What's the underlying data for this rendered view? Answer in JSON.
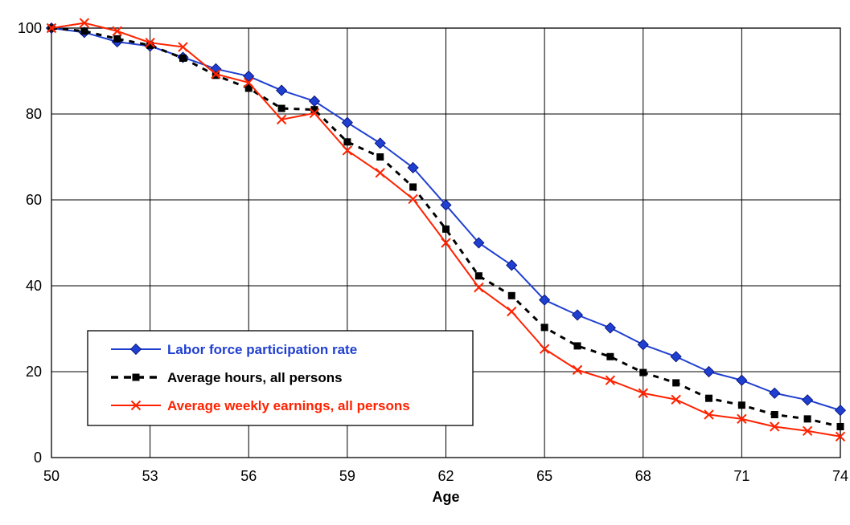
{
  "chart_data": {
    "type": "line",
    "title": "",
    "xlabel": "Age",
    "ylabel": "",
    "xlim": [
      50,
      74
    ],
    "ylim": [
      0,
      100
    ],
    "x_ticks": [
      50,
      53,
      56,
      59,
      62,
      65,
      68,
      71,
      74
    ],
    "y_ticks": [
      0,
      20,
      40,
      60,
      80,
      100
    ],
    "grid": true,
    "legend_position": "lower-left",
    "x": [
      50,
      51,
      52,
      53,
      54,
      55,
      56,
      57,
      58,
      59,
      60,
      61,
      62,
      63,
      64,
      65,
      66,
      67,
      68,
      69,
      70,
      71,
      72,
      73,
      74
    ],
    "series": [
      {
        "name": "Labor force participation rate",
        "color": "#1f3fd1",
        "marker": "diamond",
        "line_style": "solid",
        "values": [
          100,
          99,
          96.8,
          95.8,
          93.2,
          90.5,
          88.8,
          85.5,
          83,
          78,
          73.2,
          67.5,
          58.8,
          50,
          44.8,
          36.7,
          33.2,
          30.2,
          26.3,
          23.5,
          20,
          18,
          15,
          13.4,
          11
        ]
      },
      {
        "name": "Average hours, all persons",
        "color": "#000000",
        "marker": "square",
        "line_style": "dashed",
        "values": [
          100,
          99.3,
          97.5,
          96,
          93,
          89,
          86,
          81.3,
          81,
          73.5,
          70,
          63,
          53.2,
          42.3,
          37.7,
          30.3,
          26,
          23.5,
          19.8,
          17.4,
          13.8,
          12.2,
          10,
          9,
          7.2
        ]
      },
      {
        "name": "Average weekly earnings, all persons",
        "color": "#ff2200",
        "marker": "x",
        "line_style": "solid",
        "values": [
          100,
          101.2,
          99.3,
          96.6,
          95.6,
          89.3,
          87.3,
          78.7,
          80.2,
          71.5,
          66.3,
          60.2,
          50,
          39.6,
          34,
          25.3,
          20.4,
          18,
          15,
          13.5,
          10,
          9,
          7.2,
          6.2,
          4.9
        ]
      }
    ]
  }
}
